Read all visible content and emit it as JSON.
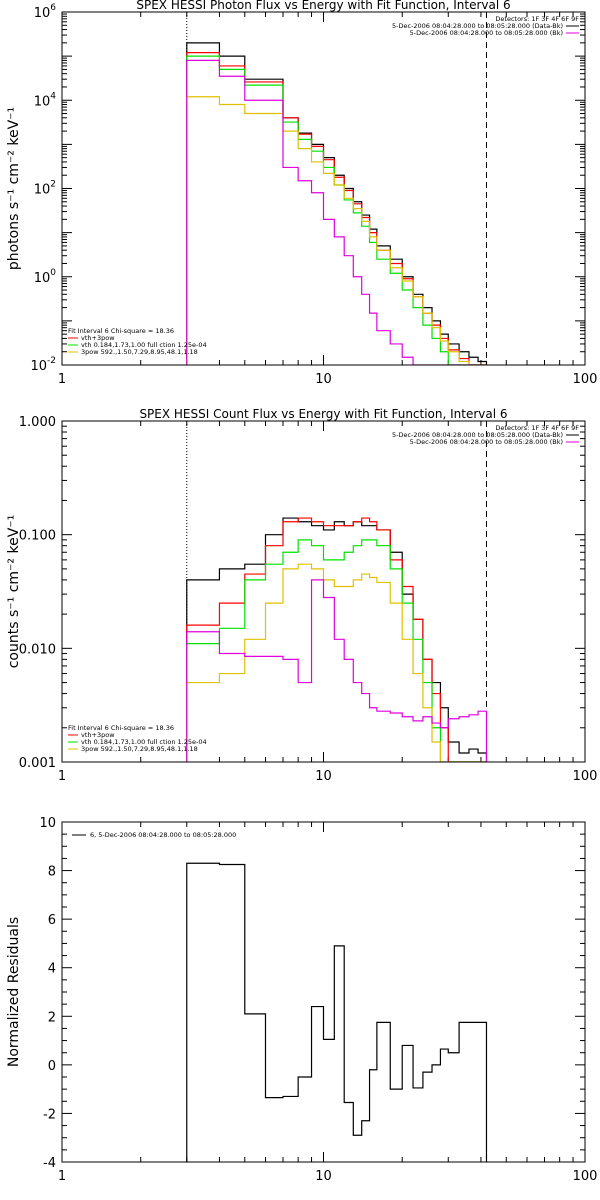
{
  "colors": {
    "black": "#000000",
    "red": "#ff0000",
    "green": "#00e000",
    "yellow": "#e0c000",
    "magenta": "#e000e0"
  },
  "chart_data": [
    {
      "type": "line",
      "title": "SPEX HESSI Photon Flux vs Energy with Fit Function, Interval 6",
      "ylabel": "photons s⁻¹ cm⁻² keV⁻¹",
      "xscale": "log",
      "yscale": "log",
      "xlim": [
        1,
        100
      ],
      "ylim": [
        0.01,
        1000000
      ],
      "x_ticks": [
        {
          "v": 1,
          "label": "1"
        },
        {
          "v": 10,
          "label": "10"
        },
        {
          "v": 100,
          "label": "100"
        }
      ],
      "y_ticks": [
        {
          "v": 0.01,
          "base": "10",
          "exp": "-2"
        },
        {
          "v": 1,
          "base": "10",
          "exp": "0"
        },
        {
          "v": 100,
          "base": "10",
          "exp": "2"
        },
        {
          "v": 10000,
          "base": "10",
          "exp": "4"
        },
        {
          "v": 1000000,
          "base": "10",
          "exp": "6"
        }
      ],
      "vlines": [
        {
          "x": 3,
          "style": "dotted"
        },
        {
          "x": 42,
          "style": "dashed"
        }
      ],
      "legend_top": {
        "detectors": "Detectors: 1F 3F 4F 6F 9F",
        "lines": [
          {
            "text": "5-Dec-2006 08:04:28.000 to 08:05:28.000 (Data-Bk)",
            "color": "#000000"
          },
          {
            "text": "5-Dec-2006 08:04:28.000 to 08:05:28.000 (Bk)",
            "color": "#e000e0"
          }
        ]
      },
      "legend_bottom": {
        "header": "Fit Interval 6   Chi-square = 18.36",
        "lines": [
          {
            "text": "vth+3pow",
            "color": "#ff0000"
          },
          {
            "text": "vth 0.184,1.73,1.00  full ction 1.25e-04",
            "color": "#00e000"
          },
          {
            "text": "3pow 592.,1.50,7.29,8.95,48.1,1.18",
            "color": "#e0c000"
          }
        ]
      },
      "bin_edges": [
        3.0,
        4.0,
        5.0,
        6.0,
        7.0,
        8.0,
        9.0,
        10.0,
        11.0,
        12.0,
        13.0,
        14.0,
        15.0,
        16.0,
        18.0,
        20.0,
        22.0,
        24.0,
        26.0,
        28.0,
        30.0,
        33.0,
        36.0,
        39.0,
        42.0
      ],
      "series": [
        {
          "color": "#000000",
          "values": [
            200000,
            100000,
            30000,
            30000,
            4000,
            1800,
            1000,
            500,
            200,
            100,
            50,
            25,
            12,
            5,
            2.5,
            1.0,
            0.4,
            0.2,
            0.1,
            0.05,
            0.03,
            0.02,
            0.015,
            0.012
          ]
        },
        {
          "color": "#ff0000",
          "values": [
            120000,
            60000,
            26000,
            26000,
            4000,
            1700,
            900,
            450,
            180,
            90,
            45,
            22,
            10,
            4,
            2.0,
            0.9,
            0.35,
            0.15,
            0.08,
            0.04,
            0.022,
            0.014,
            0.01,
            0.01
          ]
        },
        {
          "color": "#00e000",
          "values": [
            100000,
            50000,
            22000,
            22000,
            3200,
            1300,
            700,
            300,
            120,
            55,
            28,
            14,
            6,
            2.5,
            1.2,
            0.5,
            0.2,
            0.08,
            0.04,
            0.02,
            0.01,
            0.01,
            0.01,
            0.01
          ]
        },
        {
          "color": "#e0c000",
          "values": [
            12000,
            8000,
            5000,
            5000,
            2000,
            800,
            400,
            220,
            120,
            60,
            35,
            18,
            8,
            4,
            1.6,
            0.8,
            0.35,
            0.15,
            0.07,
            0.035,
            0.02,
            0.012,
            0.01,
            0.01
          ]
        },
        {
          "color": "#e000e0",
          "values": [
            80000,
            35000,
            10000,
            10000,
            300,
            150,
            80,
            20,
            8,
            3,
            1,
            0.4,
            0.15,
            0.06,
            0.03,
            0.015,
            0.01,
            0.01,
            0.01,
            0.01,
            0.01,
            0.01,
            0.01,
            0.01
          ]
        }
      ]
    },
    {
      "type": "line",
      "title": "SPEX HESSI Count Flux vs Energy with Fit Function, Interval 6",
      "ylabel": "counts s⁻¹ cm⁻² keV⁻¹",
      "xscale": "log",
      "yscale": "log",
      "xlim": [
        1,
        100
      ],
      "ylim": [
        0.001,
        1.0
      ],
      "x_ticks": [
        {
          "v": 1,
          "label": "1"
        },
        {
          "v": 10,
          "label": "10"
        },
        {
          "v": 100,
          "label": "100"
        }
      ],
      "y_ticks": [
        {
          "v": 0.001,
          "label": "0.001"
        },
        {
          "v": 0.01,
          "label": "0.010"
        },
        {
          "v": 0.1,
          "label": "0.100"
        },
        {
          "v": 1.0,
          "label": "1.000"
        }
      ],
      "vlines": [
        {
          "x": 3,
          "style": "dotted"
        },
        {
          "x": 42,
          "style": "dashed"
        }
      ],
      "legend_top": {
        "detectors": "Detectors: 1F 3F 4F 6F 9F",
        "lines": [
          {
            "text": "5-Dec-2006 08:04:28.000 to 08:05:28.000 (Data-Bk)",
            "color": "#000000"
          },
          {
            "text": "5-Dec-2006 08:04:28.000 to 08:05:28.000 (Bk)",
            "color": "#e000e0"
          }
        ]
      },
      "legend_bottom": {
        "header": "Fit Interval 6   Chi-square = 18.36",
        "lines": [
          {
            "text": "vth+3pow",
            "color": "#ff0000"
          },
          {
            "text": "vth 0.184,1.73,1.00  full ction 1.25e-04",
            "color": "#00e000"
          },
          {
            "text": "3pow 592.,1.50,7.29,8.95,48.1,1.18",
            "color": "#e0c000"
          }
        ]
      },
      "bin_edges": [
        3.0,
        4.0,
        5.0,
        6.0,
        7.0,
        8.0,
        9.0,
        10.0,
        11.0,
        12.0,
        13.0,
        14.0,
        15.0,
        16.0,
        18.0,
        20.0,
        22.0,
        24.0,
        26.0,
        28.0,
        30.0,
        33.0,
        36.0,
        39.0,
        42.0
      ],
      "series": [
        {
          "color": "#000000",
          "values": [
            0.04,
            0.05,
            0.055,
            0.1,
            0.14,
            0.13,
            0.12,
            0.11,
            0.13,
            0.12,
            0.13,
            0.12,
            0.12,
            0.11,
            0.07,
            0.03,
            0.018,
            0.008,
            0.005,
            0.003,
            0.0015,
            0.0012,
            0.0013,
            0.0012
          ]
        },
        {
          "color": "#ff0000",
          "values": [
            0.016,
            0.025,
            0.045,
            0.08,
            0.13,
            0.14,
            0.13,
            0.12,
            0.12,
            0.12,
            0.13,
            0.14,
            0.13,
            0.11,
            0.06,
            0.035,
            0.018,
            0.008,
            0.004,
            0.002,
            0.001,
            0.001,
            0.001,
            0.001
          ]
        },
        {
          "color": "#00e000",
          "values": [
            0.011,
            0.015,
            0.04,
            0.055,
            0.07,
            0.09,
            0.08,
            0.06,
            0.06,
            0.07,
            0.08,
            0.09,
            0.09,
            0.08,
            0.05,
            0.025,
            0.012,
            0.005,
            0.002,
            0.001,
            0.001,
            0.001,
            0.001,
            0.001
          ]
        },
        {
          "color": "#e0c000",
          "values": [
            0.005,
            0.006,
            0.012,
            0.025,
            0.05,
            0.055,
            0.05,
            0.04,
            0.035,
            0.035,
            0.04,
            0.045,
            0.042,
            0.038,
            0.025,
            0.012,
            0.006,
            0.003,
            0.0015,
            0.001,
            0.001,
            0.001,
            0.001,
            0.001
          ]
        },
        {
          "color": "#e000e0",
          "values": [
            0.014,
            0.009,
            0.0085,
            0.0085,
            0.008,
            0.005,
            0.04,
            0.028,
            0.012,
            0.008,
            0.005,
            0.004,
            0.003,
            0.0028,
            0.0027,
            0.0025,
            0.0023,
            0.0025,
            0.0022,
            0.002,
            0.0024,
            0.0025,
            0.0026,
            0.0028
          ]
        }
      ]
    },
    {
      "type": "line",
      "title": "",
      "ylabel": "Normalized Residuals",
      "xscale": "log",
      "yscale": "linear",
      "xlim": [
        1,
        100
      ],
      "ylim": [
        -4,
        10
      ],
      "x_ticks": [
        {
          "v": 1,
          "label": "1"
        },
        {
          "v": 10,
          "label": "10"
        },
        {
          "v": 100,
          "label": "100"
        }
      ],
      "y_ticks": [
        {
          "v": -4,
          "label": "-4"
        },
        {
          "v": -2,
          "label": "-2"
        },
        {
          "v": 0,
          "label": "0"
        },
        {
          "v": 2,
          "label": "2"
        },
        {
          "v": 4,
          "label": "4"
        },
        {
          "v": 6,
          "label": "6"
        },
        {
          "v": 8,
          "label": "8"
        },
        {
          "v": 10,
          "label": "10"
        }
      ],
      "legend_top": {
        "detectors": "",
        "lines": [
          {
            "text": "6, 5-Dec-2006 08:04:28.000 to 08:05:28.000",
            "color": "#000000"
          }
        ]
      },
      "bin_edges": [
        3.0,
        4.0,
        5.0,
        6.0,
        7.0,
        8.0,
        9.0,
        10.0,
        11.0,
        12.0,
        13.0,
        14.0,
        15.0,
        16.0,
        18.0,
        20.0,
        22.0,
        24.0,
        26.0,
        28.0,
        30.0,
        33.0,
        36.0,
        39.0,
        42.0
      ],
      "series": [
        {
          "color": "#000000",
          "drop_last_to_min": true,
          "values": [
            8.3,
            8.25,
            2.1,
            -1.35,
            -1.3,
            -0.5,
            2.4,
            1.05,
            4.9,
            -1.55,
            -2.9,
            -2.3,
            -0.2,
            1.75,
            -1.0,
            0.8,
            -0.95,
            -0.3,
            0.0,
            0.65,
            0.5,
            1.75,
            1.75,
            1.75
          ]
        }
      ]
    }
  ]
}
